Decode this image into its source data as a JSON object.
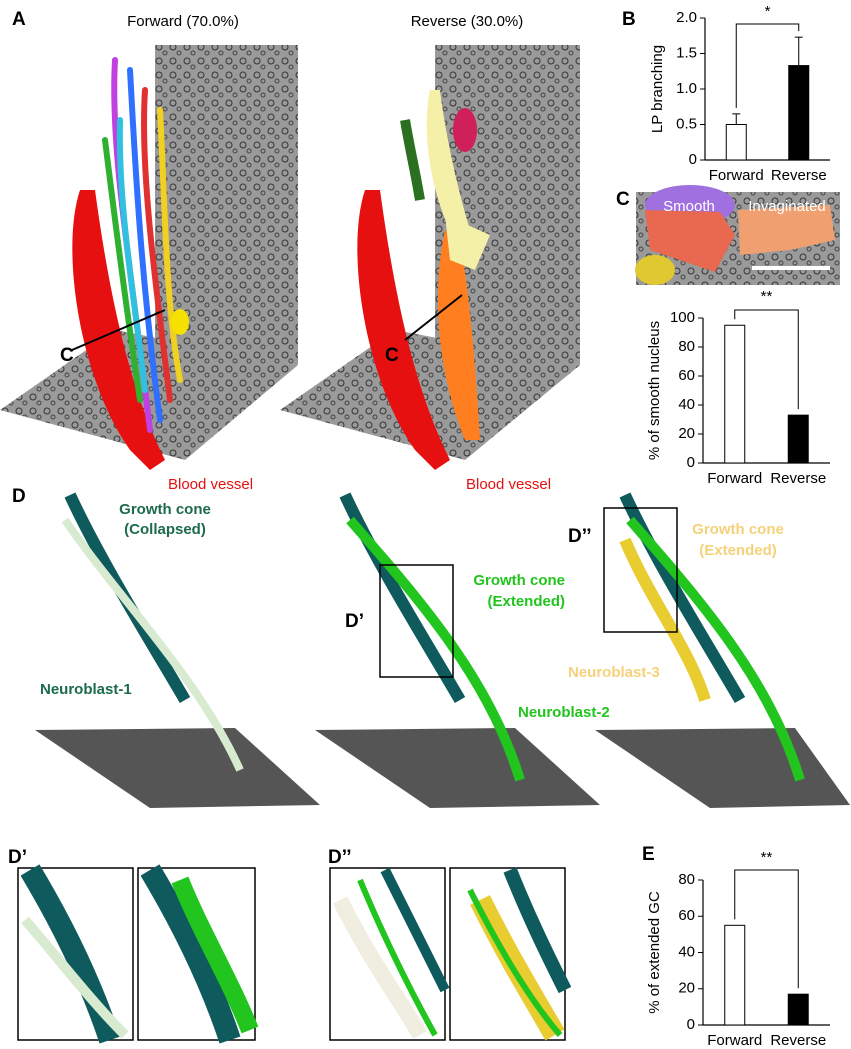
{
  "panel_a": {
    "label": "A",
    "forward_title": "Forward (70.0%)",
    "reverse_title": "Reverse (30.0%)",
    "arrow_label_forward": "C",
    "arrow_label_reverse": "C",
    "vessel_label_forward": "Blood vessel",
    "vessel_label_reverse": "Blood vessel"
  },
  "panel_b": {
    "label": "B"
  },
  "panel_c": {
    "label": "C",
    "smooth": "Smooth",
    "invaginated": "Invaginated"
  },
  "panel_d": {
    "label": "D",
    "gc_collapsed": [
      "Growth cone",
      "(Collapsed)"
    ],
    "neuroblast_1": "Neuroblast-1",
    "gc_extended_green": [
      "Growth cone",
      "(Extended)"
    ],
    "neuroblast_2": "Neuroblast-2",
    "inset_d1": "D’",
    "inset_d2": "D’’",
    "gc_extended_yellow": [
      "Growth cone",
      "(Extended)"
    ],
    "neuroblast_3": "Neuroblast-3",
    "zoom_d1": "D’",
    "zoom_d2": "D’’"
  },
  "panel_e": {
    "label": "E"
  },
  "chart_data": [
    {
      "type": "bar",
      "y_label": "LP branching",
      "categories": [
        "Forward",
        "Reverse"
      ],
      "values": [
        0.5,
        1.33
      ],
      "errors": [
        0.15,
        0.4
      ],
      "colors": [
        "#ffffff",
        "#000000"
      ],
      "ylim": [
        0,
        2
      ],
      "yticks": [
        0,
        0.5,
        {
          "value": 1,
          "label": "1.0"
        },
        1.5,
        {
          "value": 2,
          "label": "2.0"
        }
      ],
      "significance": "*"
    },
    {
      "type": "bar",
      "y_label": "% of smooth nucleus",
      "categories": [
        "Forward",
        "Reverse"
      ],
      "values": [
        95,
        33
      ],
      "colors": [
        "#ffffff",
        "#000000"
      ],
      "ylim": [
        0,
        100
      ],
      "yticks": [
        0,
        20,
        40,
        60,
        80,
        100
      ],
      "significance": "**"
    },
    {
      "type": "bar",
      "y_label": "% of extended GC",
      "categories": [
        "Forward",
        "Reverse"
      ],
      "values": [
        55,
        17
      ],
      "colors": [
        "#ffffff",
        "#000000"
      ],
      "ylim": [
        0,
        80
      ],
      "yticks": [
        0,
        20,
        40,
        60,
        80
      ],
      "significance": "**"
    }
  ]
}
